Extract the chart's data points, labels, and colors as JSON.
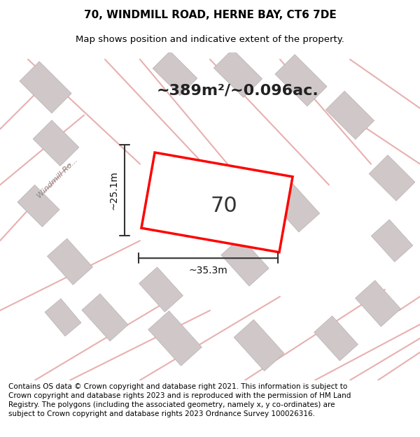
{
  "title": "70, WINDMILL ROAD, HERNE BAY, CT6 7DE",
  "subtitle": "Map shows position and indicative extent of the property.",
  "area_text": "~389m²/~0.096ac.",
  "label_number": "70",
  "dim_width": "~35.3m",
  "dim_height": "~25.1m",
  "footer": "Contains OS data © Crown copyright and database right 2021. This information is subject to Crown copyright and database rights 2023 and is reproduced with the permission of HM Land Registry. The polygons (including the associated geometry, namely x, y co-ordinates) are subject to Crown copyright and database rights 2023 Ordnance Survey 100026316.",
  "bg_color": "#f5f0f0",
  "map_bg": "#f9f6f6",
  "building_color": "#d0c8c8",
  "road_color": "#f0e8e8",
  "plot_edge_color": "#ff0000",
  "plot_fill": "#ffffff",
  "dim_line_color": "#333333",
  "road_line_color": "#e8b0b0",
  "title_fontsize": 11,
  "subtitle_fontsize": 9.5,
  "area_fontsize": 16,
  "label_fontsize": 22,
  "dim_fontsize": 10,
  "footer_fontsize": 7.5
}
